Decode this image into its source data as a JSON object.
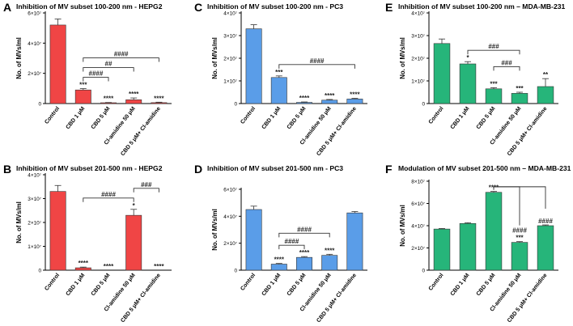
{
  "chart_data": [
    {
      "id": "A",
      "type": "bar",
      "letter": "A",
      "title": "Inhibition of MV subset 100-200 nm - HEPG2",
      "ylabel": "No. of MVs/ml",
      "ylim": [
        0,
        60000000
      ],
      "yticks": [
        0,
        20000000,
        40000000,
        60000000
      ],
      "ytick_labels": [
        "0",
        "2×10⁷",
        "4×10⁷",
        "6×10⁷"
      ],
      "color": "#f04545",
      "categories": [
        "Control",
        "CBD 1 μM",
        "CBD 5 μM",
        "Cl-amidine 50 μM",
        "CBD 5 μM+ Cl-amidine"
      ],
      "values": [
        52000000,
        9000000,
        500000,
        2500000,
        600000
      ],
      "errors": [
        4000000,
        900000,
        200000,
        1200000,
        300000
      ],
      "stars": [
        "",
        "***",
        "****",
        "****",
        "****"
      ],
      "brackets": [
        {
          "from": 1,
          "to": 2,
          "label": "####"
        },
        {
          "from": 1,
          "to": 3,
          "label": "##"
        },
        {
          "from": 1,
          "to": 4,
          "label": "####"
        }
      ]
    },
    {
      "id": "B",
      "type": "bar",
      "letter": "B",
      "title": "Inhibition of MV subset 201-500 nm - HEPG2",
      "ylabel": "No. of MVs/ml",
      "ylim": [
        0,
        40000000
      ],
      "yticks": [
        0,
        10000000,
        20000000,
        30000000,
        40000000
      ],
      "ytick_labels": [
        "0",
        "1×10⁷",
        "2×10⁷",
        "3×10⁷",
        "4×10⁷"
      ],
      "color": "#f04545",
      "categories": [
        "Control",
        "CBD 1 μM",
        "CBD 5 μM",
        "Cl-amidine 50 μM",
        "CBD 5 μM+ Cl-amidine"
      ],
      "values": [
        33000000,
        1000000,
        0,
        23000000,
        0
      ],
      "errors": [
        2500000,
        300000,
        0,
        2500000,
        0
      ],
      "stars": [
        "",
        "****",
        "****",
        "*",
        "****"
      ],
      "brackets": [
        {
          "from": 1,
          "to": 3,
          "label": "####"
        },
        {
          "from": 3,
          "to": 4,
          "label": "###"
        }
      ]
    },
    {
      "id": "C",
      "type": "bar",
      "letter": "C",
      "title": "Inhibition of MV subset 100-200 nm - PC3",
      "ylabel": "No. of MVs/ml",
      "ylim": [
        0,
        40000000
      ],
      "yticks": [
        0,
        10000000,
        20000000,
        30000000,
        40000000
      ],
      "ytick_labels": [
        "0",
        "1×10⁷",
        "2×10⁷",
        "3×10⁷",
        "4×10⁷"
      ],
      "color": "#5a9de8",
      "categories": [
        "Control",
        "CBD 1 μM",
        "CBD 5 μM",
        "Cl-amidine 50 μM",
        "CBD 5 μM+ Cl-amidine"
      ],
      "values": [
        33000000,
        11500000,
        500000,
        1500000,
        2000000
      ],
      "errors": [
        1800000,
        700000,
        200000,
        300000,
        300000
      ],
      "stars": [
        "",
        "***",
        "****",
        "****",
        "****"
      ],
      "brackets": [
        {
          "from": 1,
          "to": 4,
          "label": "####"
        }
      ]
    },
    {
      "id": "D",
      "type": "bar",
      "letter": "D",
      "title": "Inhibition of MV subset 201-500 nm - PC3",
      "ylabel": "No. of MVs/ml",
      "ylim": [
        0,
        60000000
      ],
      "yticks": [
        0,
        20000000,
        40000000,
        60000000
      ],
      "ytick_labels": [
        "0",
        "2×10⁷",
        "4×10⁷",
        "6×10⁷"
      ],
      "color": "#5a9de8",
      "categories": [
        "Control",
        "CBD 1 μM",
        "CBD 5 μM",
        "Cl-amidine 50 μM",
        "CBD 5 μM+ Cl-amidine"
      ],
      "values": [
        45000000,
        4500000,
        9500000,
        11000000,
        42500000
      ],
      "errors": [
        2500000,
        500000,
        600000,
        800000,
        1000000
      ],
      "stars": [
        "",
        "****",
        "****",
        "****",
        ""
      ],
      "brackets": [
        {
          "from": 1,
          "to": 2,
          "label": "####"
        },
        {
          "from": 1,
          "to": 3,
          "label": "####"
        }
      ]
    },
    {
      "id": "E",
      "type": "bar",
      "letter": "E",
      "title": "Inhibition of MV subset 100-200 nm – MDA-MB-231",
      "ylabel": "No. of MVs/ml",
      "ylim": [
        0,
        40000000
      ],
      "yticks": [
        0,
        10000000,
        20000000,
        30000000,
        40000000
      ],
      "ytick_labels": [
        "0",
        "1×10⁷",
        "2×10⁷",
        "3×10⁷",
        "4×10⁷"
      ],
      "color": "#26b57a",
      "categories": [
        "Control",
        "CBD 1 μM",
        "CBD 5 μM",
        "Cl-amidine 50 μM",
        "CBD 5 μM+ Cl-amidine"
      ],
      "values": [
        26500000,
        17500000,
        6500000,
        4500000,
        7500000
      ],
      "errors": [
        2000000,
        1000000,
        500000,
        500000,
        3500000
      ],
      "stars": [
        "",
        "*",
        "***",
        "***",
        "**"
      ],
      "brackets": [
        {
          "from": 1,
          "to": 3,
          "label": "###"
        },
        {
          "from": 2,
          "to": 3,
          "label": "###"
        }
      ]
    },
    {
      "id": "F",
      "type": "bar",
      "letter": "F",
      "title": "Modulation of MV subset 201-500 nm – MDA-MB-231",
      "ylabel": "No. of MVs/ml",
      "ylim": [
        0,
        80000000
      ],
      "yticks": [
        0,
        20000000,
        40000000,
        60000000,
        80000000
      ],
      "ytick_labels": [
        "0",
        "2×10⁷",
        "4×10⁷",
        "6×10⁷",
        "8×10⁷"
      ],
      "color": "#26b57a",
      "categories": [
        "Control",
        "CBD 1 μM",
        "CBD 5 μM",
        "Cl-amidine 50 μM",
        "CBD 5 μM+ Cl-amidine"
      ],
      "values": [
        37000000,
        42000000,
        70000000,
        25000000,
        40000000
      ],
      "errors": [
        500000,
        700000,
        800000,
        700000,
        700000
      ],
      "stars": [
        "",
        "",
        "****",
        "***",
        ""
      ],
      "hashes": [
        "",
        "",
        "",
        "####",
        "####"
      ],
      "brackets": [
        {
          "from": 2,
          "to": 3,
          "label": "",
          "top": 75000000
        },
        {
          "from": 2,
          "to": 4,
          "label": "",
          "top": 75000000
        }
      ]
    }
  ]
}
